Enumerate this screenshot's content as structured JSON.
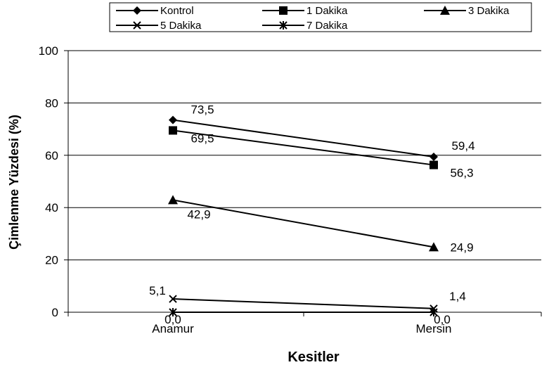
{
  "chart_data": {
    "type": "line",
    "title": "",
    "xlabel": "Kesitler",
    "ylabel": "Çimlenme Yüzdesi (%)",
    "categories": [
      "Anamur",
      "Mersin"
    ],
    "ylim": [
      0,
      100
    ],
    "yticks": [
      "0",
      "20",
      "40",
      "60",
      "80",
      "100"
    ],
    "grid": true,
    "legend_position": "top",
    "series": [
      {
        "name": "Kontrol",
        "marker": "diamond",
        "values": [
          73.5,
          59.4
        ],
        "labels": [
          "73,5",
          "59,4"
        ]
      },
      {
        "name": "1 Dakika",
        "marker": "square",
        "values": [
          69.5,
          56.3
        ],
        "labels": [
          "69,5",
          "56,3"
        ]
      },
      {
        "name": "3 Dakika",
        "marker": "triangle",
        "values": [
          42.9,
          24.9
        ],
        "labels": [
          "42,9",
          "24,9"
        ]
      },
      {
        "name": "5 Dakika",
        "marker": "x",
        "values": [
          5.1,
          1.4
        ],
        "labels": [
          "5,1",
          "1,4"
        ]
      },
      {
        "name": "7 Dakika",
        "marker": "star",
        "values": [
          0.0,
          0.0
        ],
        "labels": [
          "0,0",
          "0,0"
        ]
      }
    ],
    "line_color": "#000000"
  }
}
